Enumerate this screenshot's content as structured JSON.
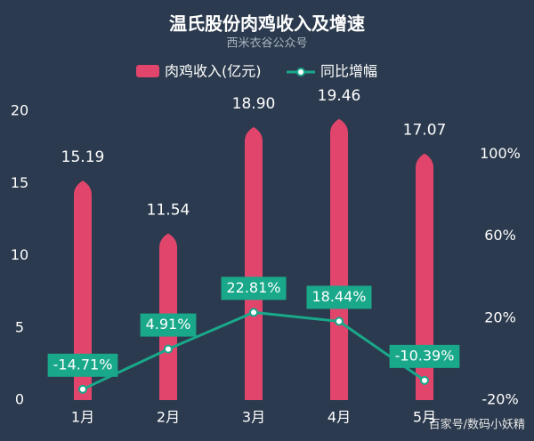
{
  "chart_data": {
    "type": "combo",
    "title": "温氏股份肉鸡收入及增速",
    "subtitle": "西米衣谷公众号",
    "watermark": "百家号/数码小妖精",
    "categories": [
      "1月",
      "2月",
      "3月",
      "4月",
      "5月"
    ],
    "series": [
      {
        "name": "肉鸡收入(亿元)",
        "type": "bar",
        "color": "#e2456c",
        "values": [
          15.19,
          11.54,
          18.9,
          19.46,
          17.07
        ],
        "value_labels": [
          "15.19",
          "11.54",
          "18.90",
          "19.46",
          "17.07"
        ]
      },
      {
        "name": "同比增幅",
        "type": "line",
        "axis": "y2",
        "color": "#19a88a",
        "values": [
          -14.71,
          4.91,
          22.81,
          18.44,
          -10.39
        ],
        "value_labels": [
          "-14.71%",
          "4.91%",
          "22.81%",
          "18.44%",
          "-10.39%"
        ]
      }
    ],
    "ylim": [
      0,
      20
    ],
    "yticks": [
      0,
      5,
      10,
      15,
      20
    ],
    "y2lim": [
      -20,
      121
    ],
    "y2ticks": [
      {
        "value": -20,
        "label": "-20%"
      },
      {
        "value": 20,
        "label": "20%"
      },
      {
        "value": 60,
        "label": "60%"
      },
      {
        "value": 100,
        "label": "100%"
      }
    ],
    "legend": "top"
  }
}
